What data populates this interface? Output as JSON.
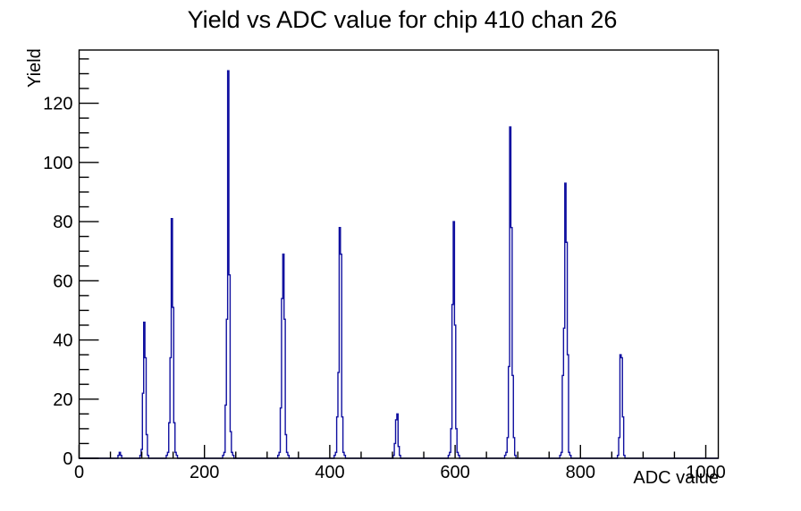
{
  "page": {
    "background": "#ffffff"
  },
  "chart_data": {
    "type": "bar",
    "subtype": "step-histogram",
    "title": "Yield vs ADC value for chip 410 chan 26",
    "xlabel": "ADC value",
    "ylabel": "Yield",
    "xlim": [
      0,
      1020
    ],
    "ylim": [
      0,
      138
    ],
    "x_major_ticks": [
      0,
      200,
      400,
      600,
      800,
      1000
    ],
    "x_minor_step": 50,
    "y_major_ticks": [
      0,
      20,
      40,
      60,
      80,
      100,
      120
    ],
    "y_minor_step": 5,
    "grid": false,
    "legend": "none",
    "line_color": "#1010a0",
    "frame_color": "#000000",
    "bin_width": 2,
    "peaks_summary": [
      {
        "adc": 65,
        "yield": 2
      },
      {
        "adc": 104,
        "yield": 46
      },
      {
        "adc": 148,
        "yield": 81
      },
      {
        "adc": 238,
        "yield": 131
      },
      {
        "adc": 326,
        "yield": 69
      },
      {
        "adc": 416,
        "yield": 78
      },
      {
        "adc": 508,
        "yield": 15
      },
      {
        "adc": 598,
        "yield": 80
      },
      {
        "adc": 688,
        "yield": 112
      },
      {
        "adc": 776,
        "yield": 93
      },
      {
        "adc": 864,
        "yield": 35
      }
    ],
    "clusters": [
      {
        "start": 62,
        "heights": [
          1,
          2,
          1
        ]
      },
      {
        "start": 97,
        "heights": [
          1,
          3,
          22,
          46,
          34,
          8,
          1
        ]
      },
      {
        "start": 139,
        "heights": [
          1,
          2,
          12,
          34,
          81,
          51,
          12,
          2,
          1
        ]
      },
      {
        "start": 229,
        "heights": [
          1,
          2,
          18,
          47,
          131,
          62,
          9,
          2,
          1
        ]
      },
      {
        "start": 317,
        "heights": [
          1,
          2,
          17,
          54,
          69,
          47,
          8,
          2,
          1
        ]
      },
      {
        "start": 407,
        "heights": [
          1,
          2,
          14,
          29,
          78,
          69,
          14,
          2,
          1
        ]
      },
      {
        "start": 501,
        "heights": [
          1,
          5,
          13,
          15,
          4,
          1
        ]
      },
      {
        "start": 589,
        "heights": [
          1,
          2,
          10,
          52,
          80,
          45,
          10,
          2,
          1
        ]
      },
      {
        "start": 679,
        "heights": [
          1,
          2,
          7,
          31,
          112,
          78,
          28,
          7,
          1
        ]
      },
      {
        "start": 767,
        "heights": [
          1,
          2,
          28,
          44,
          93,
          73,
          35,
          2,
          1
        ]
      },
      {
        "start": 859,
        "heights": [
          1,
          7,
          35,
          34,
          14,
          1
        ]
      }
    ]
  }
}
